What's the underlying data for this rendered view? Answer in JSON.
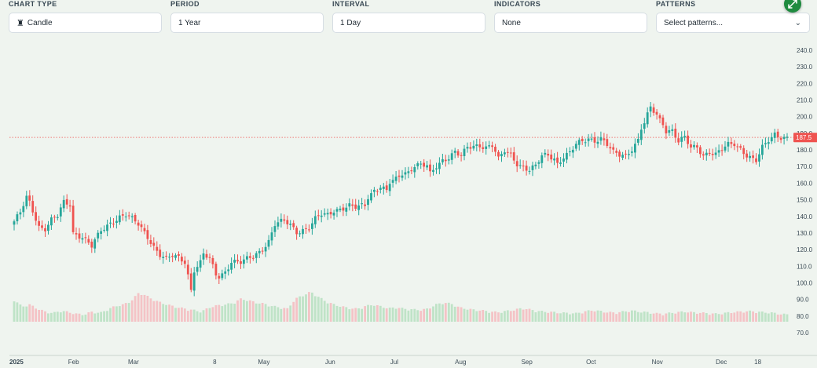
{
  "toolbar": {
    "chart_type": {
      "label": "CHART TYPE",
      "value": "Candle"
    },
    "period": {
      "label": "PERIOD",
      "value": "1 Year"
    },
    "interval": {
      "label": "INTERVAL",
      "value": "1 Day"
    },
    "indicators": {
      "label": "INDICATORS",
      "value": "None"
    },
    "patterns": {
      "label": "PATTERNS",
      "placeholder": "Select patterns..."
    }
  },
  "icons": {
    "chart_type": "candle-icon",
    "dropdown": "chevron-down-icon",
    "expand": "expand-icon"
  },
  "colors": {
    "up": "#26a69a",
    "down": "#ef5350",
    "up_volume": "#bfe3c7",
    "down_volume": "#f4c3c6",
    "last_price_line": "#ef5350",
    "background": "#eff4ef"
  },
  "chart_data": {
    "type": "candlestick",
    "title": "",
    "xlabel": "",
    "ylabel": "",
    "ylim": [
      70,
      240
    ],
    "y_ticks": [
      "70.0",
      "80.0",
      "90.0",
      "100.0",
      "110.0",
      "120.0",
      "130.0",
      "140.0",
      "150.0",
      "160.0",
      "170.0",
      "180.0",
      "190.0",
      "200.0",
      "210.0",
      "220.0",
      "230.0",
      "240.0"
    ],
    "x_ticks": [
      {
        "label": "2025",
        "date": "2025-01-01",
        "bold": true
      },
      {
        "label": "Feb",
        "date": "2025-02-01"
      },
      {
        "label": "Mar",
        "date": "2025-03-01"
      },
      {
        "label": "8",
        "date": "2025-04-08"
      },
      {
        "label": "May",
        "date": "2025-05-01"
      },
      {
        "label": "Jun",
        "date": "2025-06-01"
      },
      {
        "label": "Jul",
        "date": "2025-07-01"
      },
      {
        "label": "Aug",
        "date": "2025-08-01"
      },
      {
        "label": "Sep",
        "date": "2025-09-01"
      },
      {
        "label": "Oct",
        "date": "2025-10-01"
      },
      {
        "label": "Nov",
        "date": "2025-11-01"
      },
      {
        "label": "Dec",
        "date": "2025-12-01"
      },
      {
        "label": "18",
        "date": "2025-12-18"
      }
    ],
    "date_range": [
      "2025-01-02",
      "2025-12-31"
    ],
    "last_price": 187.5,
    "last_price_label": "187.5",
    "grid": false,
    "close_anchors": [
      [
        0,
        137
      ],
      [
        2,
        142
      ],
      [
        4,
        151
      ],
      [
        5,
        148
      ],
      [
        8,
        134
      ],
      [
        10,
        133
      ],
      [
        12,
        138
      ],
      [
        14,
        140
      ],
      [
        16,
        148
      ],
      [
        18,
        147
      ],
      [
        19,
        130
      ],
      [
        22,
        128
      ],
      [
        25,
        122
      ],
      [
        28,
        131
      ],
      [
        31,
        136
      ],
      [
        34,
        140
      ],
      [
        36,
        141
      ],
      [
        38,
        138
      ],
      [
        40,
        135
      ],
      [
        43,
        128
      ],
      [
        45,
        122
      ],
      [
        47,
        117
      ],
      [
        49,
        114
      ],
      [
        51,
        116
      ],
      [
        53,
        115
      ],
      [
        55,
        113
      ],
      [
        56,
        105
      ],
      [
        57,
        96
      ],
      [
        58,
        108
      ],
      [
        60,
        112
      ],
      [
        61,
        117
      ],
      [
        63,
        114
      ],
      [
        65,
        105
      ],
      [
        66,
        104
      ],
      [
        68,
        107
      ],
      [
        70,
        113
      ],
      [
        73,
        112
      ],
      [
        75,
        114
      ],
      [
        77,
        116
      ],
      [
        79,
        119
      ],
      [
        82,
        125
      ],
      [
        84,
        135
      ],
      [
        87,
        137
      ],
      [
        89,
        135
      ],
      [
        91,
        131
      ],
      [
        93,
        132
      ],
      [
        95,
        133
      ],
      [
        97,
        138
      ],
      [
        99,
        141
      ],
      [
        101,
        141
      ],
      [
        103,
        144
      ],
      [
        106,
        145
      ],
      [
        108,
        146
      ],
      [
        110,
        145
      ],
      [
        113,
        147
      ],
      [
        114,
        152
      ],
      [
        116,
        156
      ],
      [
        118,
        158
      ],
      [
        120,
        155
      ],
      [
        121,
        160
      ],
      [
        123,
        162
      ],
      [
        125,
        166
      ],
      [
        127,
        167
      ],
      [
        129,
        171
      ],
      [
        131,
        171
      ],
      [
        133,
        170
      ],
      [
        134,
        165
      ],
      [
        136,
        170
      ],
      [
        138,
        174
      ],
      [
        140,
        176
      ],
      [
        142,
        179
      ],
      [
        144,
        176
      ],
      [
        146,
        181
      ],
      [
        148,
        182
      ],
      [
        150,
        183
      ],
      [
        152,
        182
      ],
      [
        154,
        183
      ],
      [
        155,
        179
      ],
      [
        156,
        174
      ],
      [
        158,
        179
      ],
      [
        160,
        177
      ],
      [
        162,
        172
      ],
      [
        164,
        170
      ],
      [
        166,
        168
      ],
      [
        168,
        170
      ],
      [
        170,
        176
      ],
      [
        172,
        177
      ],
      [
        174,
        175
      ],
      [
        175,
        172
      ],
      [
        177,
        176
      ],
      [
        179,
        178
      ],
      [
        181,
        183
      ],
      [
        183,
        185
      ],
      [
        185,
        187
      ],
      [
        187,
        186
      ],
      [
        189,
        187
      ],
      [
        191,
        183
      ],
      [
        193,
        178
      ],
      [
        195,
        177
      ],
      [
        197,
        177
      ],
      [
        199,
        181
      ],
      [
        201,
        186
      ],
      [
        202,
        193
      ],
      [
        203,
        196
      ],
      [
        205,
        205
      ],
      [
        207,
        201
      ],
      [
        208,
        198
      ],
      [
        209,
        196
      ],
      [
        210,
        192
      ],
      [
        212,
        192
      ],
      [
        214,
        185
      ],
      [
        216,
        187
      ],
      [
        218,
        181
      ],
      [
        220,
        182
      ],
      [
        222,
        177
      ],
      [
        224,
        179
      ],
      [
        226,
        177
      ],
      [
        228,
        180
      ],
      [
        230,
        183
      ],
      [
        232,
        184
      ],
      [
        234,
        181
      ],
      [
        236,
        177
      ],
      [
        238,
        174
      ],
      [
        239,
        173
      ],
      [
        241,
        181
      ],
      [
        243,
        186
      ],
      [
        245,
        190
      ],
      [
        247,
        188
      ],
      [
        249,
        187
      ]
    ],
    "volume_levels": [
      0.72,
      0.48,
      0.55,
      0.4,
      0.3,
      0.25,
      0.33,
      0.28,
      0.22,
      0.2,
      0.3,
      0.25,
      0.38,
      0.5,
      0.55,
      0.68,
      0.98,
      0.85,
      0.7,
      0.6,
      0.52,
      0.45,
      0.4,
      0.35,
      0.3,
      0.45,
      0.52,
      0.55,
      0.6,
      0.75,
      0.7,
      0.62,
      0.58,
      0.5,
      0.45,
      0.4,
      0.75,
      0.88,
      1.0,
      0.82,
      0.65,
      0.55,
      0.48,
      0.42,
      0.4,
      0.5,
      0.55,
      0.48,
      0.42,
      0.45,
      0.4,
      0.38,
      0.36,
      0.4,
      0.55,
      0.62,
      0.58,
      0.45,
      0.4,
      0.36,
      0.34,
      0.3,
      0.28,
      0.32,
      0.36,
      0.42,
      0.38,
      0.32,
      0.3,
      0.28,
      0.26,
      0.25,
      0.24,
      0.3,
      0.35,
      0.32,
      0.28,
      0.26,
      0.3,
      0.34,
      0.3,
      0.28,
      0.24,
      0.22,
      0.25,
      0.28,
      0.3,
      0.27,
      0.26,
      0.24,
      0.22,
      0.25,
      0.28,
      0.3,
      0.32,
      0.3,
      0.28,
      0.26,
      0.22,
      0.2
    ]
  }
}
